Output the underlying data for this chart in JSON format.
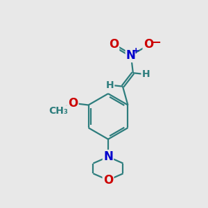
{
  "background_color": "#e8e8e8",
  "bond_color": "#2d7d7d",
  "bond_lw": 1.6,
  "atom_colors": {
    "O": "#cc0000",
    "N": "#0000cc",
    "C": "#2d7d7d",
    "H": "#2d7d7d"
  },
  "font_size_atoms": 12,
  "font_size_small": 10,
  "figsize": [
    3.0,
    3.0
  ],
  "dpi": 100
}
